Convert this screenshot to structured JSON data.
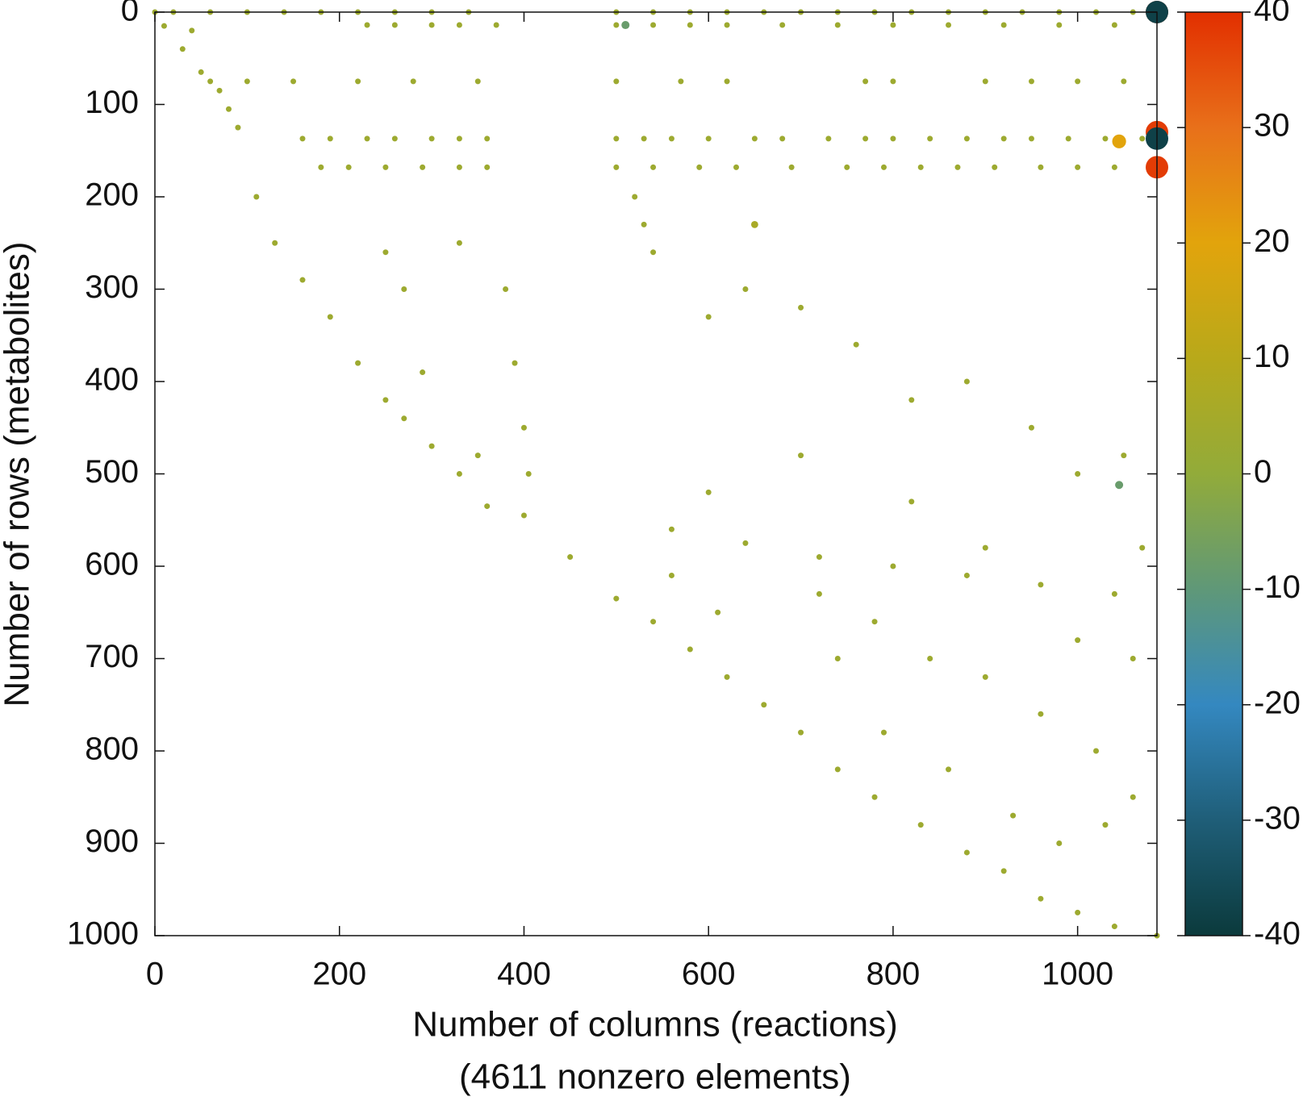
{
  "chart_data": {
    "type": "scatter",
    "xlabel": "Number of columns (reactions)",
    "xlabel2": "(4611 nonzero elements)",
    "ylabel": "Number of rows (metabolites)",
    "xlim": [
      0,
      1086
    ],
    "xticks": [
      0,
      200,
      400,
      600,
      800,
      1000
    ],
    "ylim": [
      0,
      1000
    ],
    "y_reversed": true,
    "yticks": [
      0,
      100,
      200,
      300,
      400,
      500,
      600,
      700,
      800,
      900,
      1000
    ],
    "colorbar": {
      "lim": [
        -40,
        40
      ],
      "ticks": [
        -40,
        -30,
        -20,
        -10,
        0,
        10,
        20,
        30,
        40
      ],
      "colormap": [
        {
          "value": -40,
          "color": "#0b3a3c"
        },
        {
          "value": -30,
          "color": "#1f5e78"
        },
        {
          "value": -20,
          "color": "#3488c0"
        },
        {
          "value": -10,
          "color": "#5f9878"
        },
        {
          "value": 0,
          "color": "#92ab3a"
        },
        {
          "value": 10,
          "color": "#b8a91a"
        },
        {
          "value": 20,
          "color": "#e2a40c"
        },
        {
          "value": 30,
          "color": "#e8701a"
        },
        {
          "value": 40,
          "color": "#e22f00"
        }
      ]
    },
    "series": [
      {
        "color_value": 3,
        "x": [
          0,
          10,
          30,
          50,
          70,
          90,
          110,
          130,
          160,
          190,
          220,
          250,
          270,
          300,
          330,
          360,
          400,
          450,
          500,
          540,
          580,
          620,
          660,
          700,
          740,
          780,
          830,
          880,
          920,
          960,
          1000,
          1040,
          1086,
          20,
          60,
          100,
          140,
          180,
          220,
          260,
          300,
          340,
          500,
          540,
          580,
          620,
          660,
          700,
          740,
          780,
          820,
          860,
          900,
          940,
          980,
          1020,
          1060,
          230,
          260,
          300,
          330,
          370,
          500,
          540,
          580,
          620,
          680,
          740,
          800,
          860,
          920,
          980,
          1040,
          160,
          190,
          230,
          260,
          300,
          330,
          360,
          500,
          530,
          560,
          600,
          650,
          680,
          730,
          770,
          800,
          840,
          880,
          920,
          950,
          990,
          1030,
          1070,
          180,
          210,
          250,
          290,
          330,
          360,
          500,
          540,
          590,
          630,
          690,
          750,
          790,
          830,
          870,
          910,
          960,
          1000,
          1040,
          100,
          150,
          220,
          280,
          350,
          500,
          570,
          620,
          770,
          800,
          900,
          950,
          1000,
          1050,
          520,
          530,
          540,
          380,
          390,
          400,
          405,
          560,
          640,
          720,
          800,
          880,
          960,
          1040,
          250,
          270,
          290,
          330,
          350,
          600,
          640,
          700,
          760,
          820,
          880,
          950,
          1000,
          1050,
          720,
          780,
          840,
          900,
          960,
          1020,
          1060,
          930,
          980,
          740,
          790,
          860,
          1000,
          1070,
          900,
          820,
          700,
          600,
          560,
          610,
          1060,
          1030,
          40,
          60,
          80
        ],
        "y": [
          0,
          15,
          40,
          65,
          85,
          125,
          200,
          250,
          290,
          330,
          380,
          420,
          440,
          470,
          500,
          535,
          545,
          590,
          635,
          660,
          690,
          720,
          750,
          780,
          820,
          850,
          880,
          910,
          930,
          960,
          975,
          990,
          1000,
          0,
          0,
          0,
          0,
          0,
          0,
          0,
          0,
          0,
          0,
          0,
          0,
          0,
          0,
          0,
          0,
          0,
          0,
          0,
          0,
          0,
          0,
          0,
          0,
          14,
          14,
          14,
          14,
          14,
          14,
          14,
          14,
          14,
          14,
          14,
          14,
          14,
          14,
          14,
          14,
          137,
          137,
          137,
          137,
          137,
          137,
          137,
          137,
          137,
          137,
          137,
          137,
          137,
          137,
          137,
          137,
          137,
          137,
          137,
          137,
          137,
          137,
          137,
          168,
          168,
          168,
          168,
          168,
          168,
          168,
          168,
          168,
          168,
          168,
          168,
          168,
          168,
          168,
          168,
          168,
          168,
          168,
          75,
          75,
          75,
          75,
          75,
          75,
          75,
          75,
          75,
          75,
          75,
          75,
          75,
          75,
          200,
          230,
          260,
          300,
          380,
          450,
          500,
          560,
          575,
          590,
          600,
          610,
          620,
          630,
          260,
          300,
          390,
          250,
          480,
          330,
          300,
          320,
          360,
          420,
          400,
          450,
          500,
          480,
          630,
          660,
          700,
          720,
          760,
          800,
          850,
          870,
          900,
          700,
          780,
          820,
          680,
          580,
          580,
          530,
          480,
          520,
          610,
          650,
          700,
          880,
          20,
          75,
          105
        ]
      },
      {
        "color_value": 38,
        "x": [
          1086,
          1086,
          1086
        ],
        "y": [
          0,
          130,
          168
        ]
      },
      {
        "color_value": -38,
        "x": [
          1086,
          1086
        ],
        "y": [
          0,
          137
        ]
      },
      {
        "color_value": 20,
        "x": [
          1045
        ],
        "y": [
          140
        ]
      },
      {
        "color_value": -8,
        "x": [
          1045,
          510
        ],
        "y": [
          512,
          14
        ]
      },
      {
        "color_value": 6,
        "x": [
          650
        ],
        "y": [
          230
        ]
      }
    ]
  }
}
